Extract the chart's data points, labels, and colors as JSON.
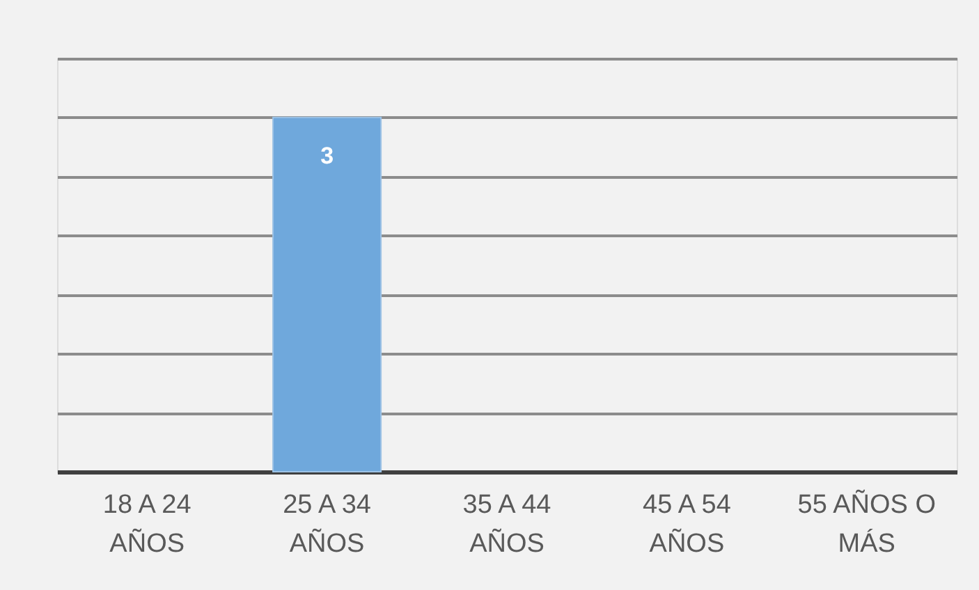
{
  "chart_data": {
    "type": "bar",
    "categories": [
      "18 A 24 AÑOS",
      "25 A 34 AÑOS",
      "35 A 44 AÑOS",
      "45 A 54 AÑOS",
      "55 AÑOS O MÁS"
    ],
    "values": [
      null,
      3,
      null,
      null,
      null
    ],
    "value_labels": [
      null,
      "3",
      null,
      null,
      null
    ],
    "color": "#6fa8dc",
    "ylim": [
      0,
      3.5
    ],
    "yticks": [
      {
        "value": 0,
        "label": null
      },
      {
        "value": 0.5,
        "label": null
      },
      {
        "value": 1,
        "label": null
      },
      {
        "value": 1.5,
        "label": null
      },
      {
        "value": 2,
        "label": null
      },
      {
        "value": 2.5,
        "label": null
      },
      {
        "value": 3,
        "label": null
      },
      {
        "value": 3.5,
        "label": null
      }
    ],
    "tick_labels": "x",
    "grid": "y"
  }
}
